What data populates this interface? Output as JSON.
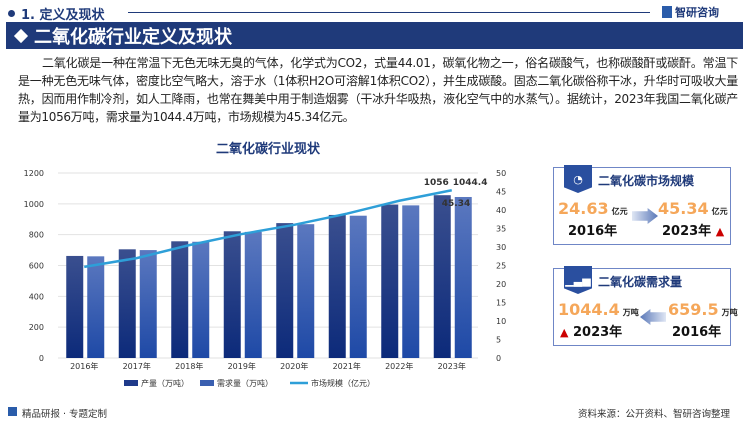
{
  "section": {
    "label": "1. 定义及现状"
  },
  "logo": {
    "text": "智研咨询"
  },
  "title": "二氧化碳行业定义及现状",
  "paragraph": "二氧化碳是一种在常温下无色无味无臭的气体，化学式为CO2，式量44.01，碳氧化物之一，俗名碳酸气，也称碳酸酐或碳酐。常温下是一种无色无味气体，密度比空气略大，溶于水（1体积H2O可溶解1体积CO2），并生成碳酸。固态二氧化碳俗称干冰，升华时可吸收大量热，因而用作制冷剂，如人工降雨，也常在舞美中用于制造烟雾（干冰升华吸热，液化空气中的水蒸气）。据统计，2023年我国二氧化碳产量为1056万吨，需求量为1044.4万吨，市场规模为45.34亿元。",
  "chart_data": {
    "type": "bar+line",
    "title": "二氧化碳行业现状",
    "categories": [
      "2016年",
      "2017年",
      "2018年",
      "2019年",
      "2020年",
      "2021年",
      "2022年",
      "2023年"
    ],
    "series": [
      {
        "name": "产量（万吨）",
        "type": "bar",
        "axis": "left",
        "color": "#1f3a8a",
        "values": [
          662,
          705,
          757,
          822,
          875,
          928,
          995,
          1056
        ]
      },
      {
        "name": "需求量（万吨）",
        "type": "bar",
        "axis": "left",
        "color": "#3a5fb0",
        "values": [
          659.5,
          700,
          754,
          818,
          868,
          923,
          990,
          1044.4
        ]
      },
      {
        "name": "市场规模（亿元）",
        "type": "line",
        "axis": "right",
        "color": "#2e9fd8",
        "values": [
          24.63,
          27,
          30.5,
          33.5,
          36,
          39,
          42.5,
          45.34
        ]
      }
    ],
    "data_labels": {
      "production": "1056",
      "demand": "1044.4",
      "market": "45.34"
    },
    "y_left": {
      "ticks": [
        "0",
        "200",
        "400",
        "600",
        "800",
        "1000",
        "1200"
      ],
      "range": [
        0,
        1200
      ]
    },
    "y_right": {
      "ticks": [
        "0",
        "5",
        "10",
        "15",
        "20",
        "25",
        "30",
        "35",
        "40",
        "45",
        "50"
      ],
      "range": [
        0,
        50
      ]
    },
    "grid": true,
    "legend": "bottom"
  },
  "card_market": {
    "title": "二氧化碳市场规模",
    "from_value": "24.63",
    "from_unit": "亿元",
    "from_year": "2016年",
    "to_value": "45.34",
    "to_unit": "亿元",
    "to_year": "2023年",
    "trend": "up"
  },
  "card_demand": {
    "title": "二氧化碳需求量",
    "to_value": "1044.4",
    "to_unit": "万吨",
    "to_year": "2023年",
    "from_value": "659.5",
    "from_unit": "万吨",
    "from_year": "2016年",
    "trend": "up"
  },
  "footer": {
    "left": "精品研报 · 专题定制",
    "right": "资料来源：公开资料、智研咨询整理"
  },
  "icons": {
    "up": "▲"
  }
}
